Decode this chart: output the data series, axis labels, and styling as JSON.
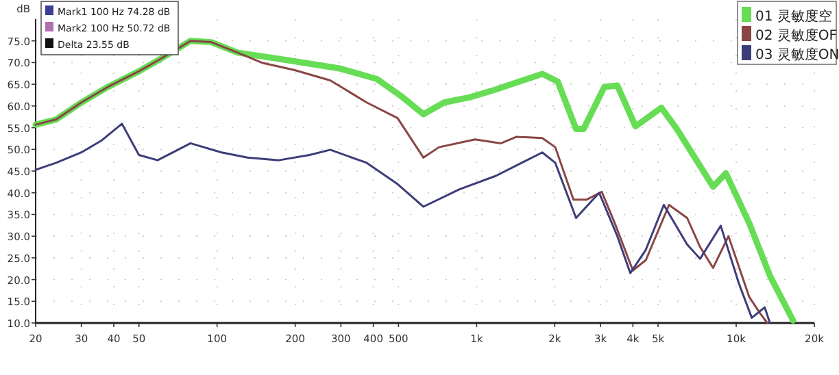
{
  "chart_data": {
    "type": "line",
    "ylabel": "dB",
    "log": "x",
    "grid": true,
    "legend": "top right",
    "line_style": "solid",
    "marker": "none",
    "xlim": [
      20,
      20000
    ],
    "ylim": [
      10,
      80
    ],
    "xticks": [
      20,
      30,
      40,
      50,
      100,
      200,
      300,
      400,
      500,
      {
        "value": 1000,
        "label": "1k"
      },
      {
        "value": 2000,
        "label": "2k"
      },
      {
        "value": 3000,
        "label": "3k"
      },
      {
        "value": 4000,
        "label": "4k"
      },
      {
        "value": 5000,
        "label": "5k"
      },
      {
        "value": 10000,
        "label": "10k"
      },
      {
        "value": 20000,
        "label": "20k"
      }
    ],
    "yticks": [
      {
        "value": 10,
        "label": "10.0"
      },
      {
        "value": 15,
        "label": "15.0"
      },
      {
        "value": 20,
        "label": "20.0"
      },
      {
        "value": 25,
        "label": "25.0"
      },
      {
        "value": 30,
        "label": "30.0"
      },
      {
        "value": 35,
        "label": "35.0"
      },
      {
        "value": 40,
        "label": "40.0"
      },
      {
        "value": 45,
        "label": "45.0"
      },
      {
        "value": 50,
        "label": "50.0"
      },
      {
        "value": 55,
        "label": "55.0"
      },
      {
        "value": 60,
        "label": "60.0"
      },
      {
        "value": 65,
        "label": "65.0"
      },
      {
        "value": 70,
        "label": "70.0"
      },
      {
        "value": 75,
        "label": "75.0"
      }
    ],
    "annotations": [
      "Mark1 100 Hz 74.28 dB",
      "Mark2 100 Hz 50.72 dB",
      "Delta 23.55 dB"
    ],
    "series": [
      {
        "name": "01 灵敏度空",
        "color": "#66dd55",
        "x": [
          20,
          24,
          30,
          38,
          50,
          60,
          79,
          95,
          120,
          189,
          299,
          413,
          519,
          624,
          750,
          942,
          1186,
          1790,
          2055,
          2416,
          2581,
          3105,
          3484,
          4093,
          5148,
          5905,
          8148,
          9128,
          11226,
          13488,
          16560
        ],
        "values": [
          55.7,
          56.9,
          60.8,
          64.4,
          68,
          70.7,
          75,
          74.7,
          72.3,
          70.5,
          68.6,
          66.2,
          62,
          58.1,
          60.8,
          62,
          63.8,
          67.4,
          65.6,
          54.7,
          54.7,
          64.4,
          64.7,
          55.3,
          59.6,
          54.7,
          41.4,
          44.5,
          33,
          20.9,
          10.6
        ]
      },
      {
        "name": "02 灵敏度OF",
        "color": "#8a4545",
        "x": [
          20,
          24,
          30,
          38,
          50,
          60,
          79,
          95,
          120,
          150,
          198,
          273,
          377,
          496,
          624,
          716,
          986,
          1241,
          1425,
          1790,
          2009,
          2361,
          2650,
          3035,
          3406,
          4000,
          4488,
          5511,
          6472,
          7262,
          8148,
          9338,
          11226,
          12302,
          13190
        ],
        "values": [
          55.7,
          56.9,
          60.8,
          64.4,
          68,
          70.7,
          75,
          74.7,
          72.3,
          69.9,
          68.3,
          65.9,
          60.8,
          57.2,
          48.1,
          50.5,
          52.3,
          51.4,
          52.9,
          52.6,
          50.5,
          38.4,
          38.4,
          40.2,
          33,
          22.1,
          24.5,
          37.2,
          34.2,
          27.5,
          22.7,
          30,
          16,
          12.4,
          10
        ]
      },
      {
        "name": "03 灵敏度ON",
        "color": "#3d3d7a",
        "x": [
          20,
          24,
          30,
          36,
          43,
          50,
          59,
          79,
          104,
          131,
          173,
          227,
          273,
          377,
          496,
          624,
          859,
          1186,
          1492,
          1790,
          2009,
          2416,
          2966,
          3484,
          3909,
          4488,
          5262,
          6472,
          7262,
          8717,
          10242,
          11483,
          12882,
          13488
        ],
        "values": [
          45.3,
          46.9,
          49.3,
          52.1,
          55.9,
          48.7,
          47.5,
          51.4,
          49.3,
          48.1,
          47.5,
          48.7,
          49.9,
          46.9,
          42,
          36.8,
          40.8,
          43.9,
          46.9,
          49.3,
          46.9,
          34.2,
          40,
          30,
          21.5,
          26.9,
          37.2,
          28.1,
          24.8,
          32.4,
          19.1,
          11.2,
          13.6,
          10
        ]
      }
    ]
  }
}
